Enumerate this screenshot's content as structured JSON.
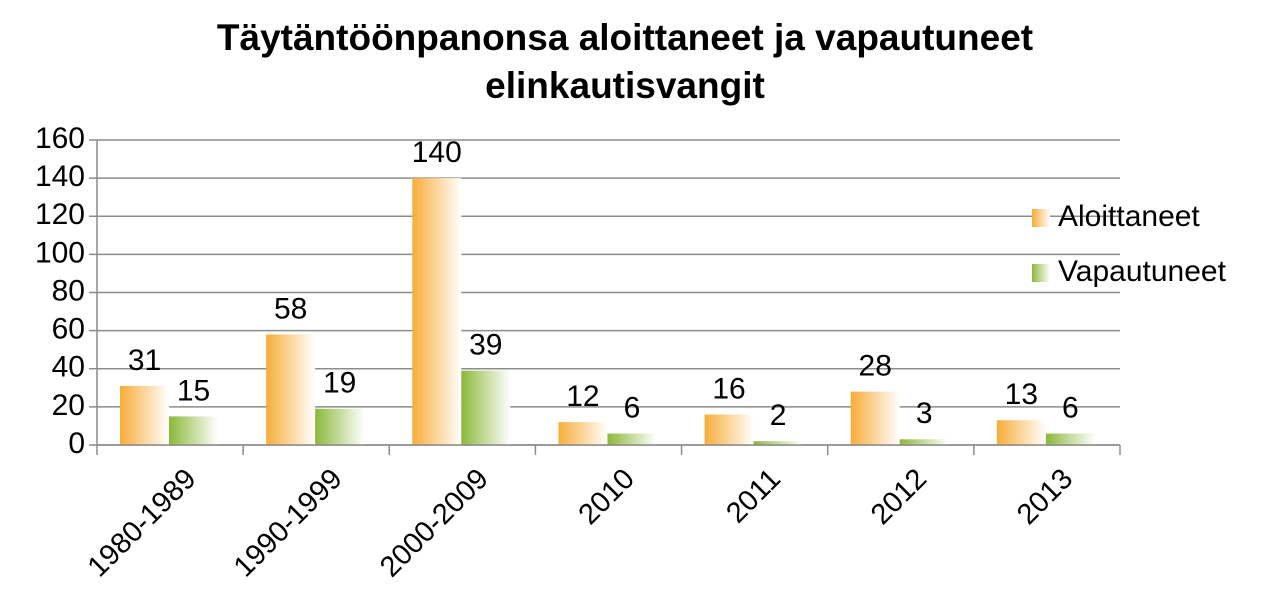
{
  "chart_data": {
    "type": "bar",
    "title": [
      "Täytäntöönpanonsa aloittaneet ja vapautuneet",
      "elinkautisvangit"
    ],
    "categories": [
      "1980-1989",
      "1990-1999",
      "2000-2009",
      "2010",
      "2011",
      "2012",
      "2013"
    ],
    "series": [
      {
        "name": "Aloittaneet",
        "color": "#f7ad3a",
        "values": [
          31,
          58,
          140,
          12,
          16,
          28,
          13
        ]
      },
      {
        "name": "Vapautuneet",
        "color": "#8cb83a",
        "values": [
          15,
          19,
          39,
          6,
          2,
          3,
          6
        ]
      }
    ],
    "ylim": [
      0,
      160
    ],
    "yticks": [
      0,
      20,
      40,
      60,
      80,
      100,
      120,
      140,
      160
    ],
    "grid": true,
    "legend": "right"
  }
}
